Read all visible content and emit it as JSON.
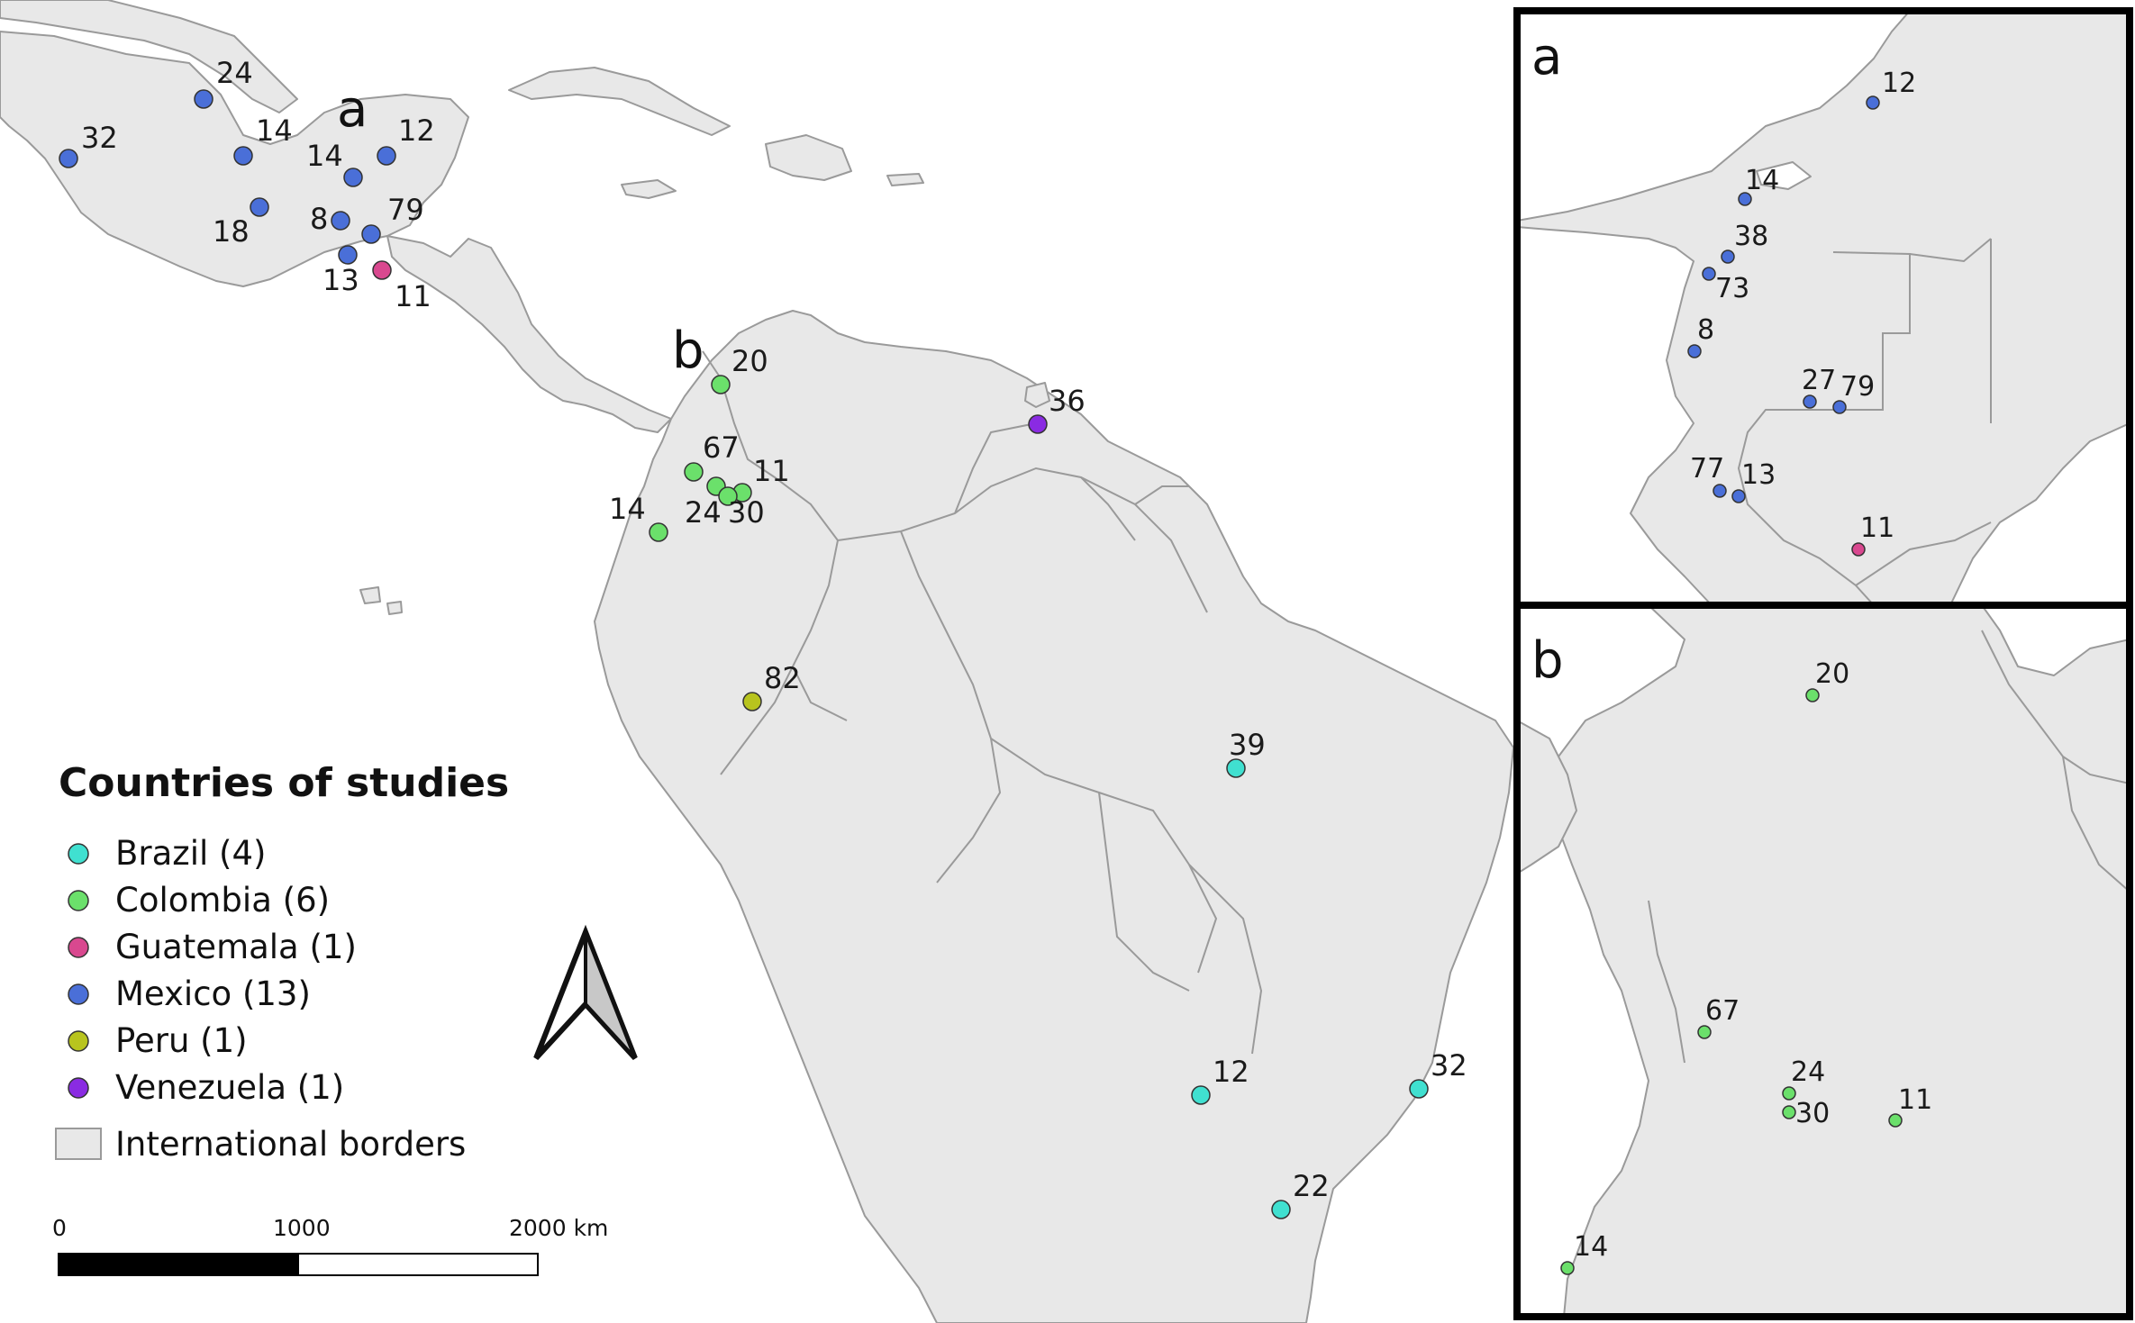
{
  "colors": {
    "brazil": "#40e0d0",
    "colombia": "#6be06b",
    "guatemala": "#d9488f",
    "mexico": "#4a6fd8",
    "peru": "#b8c41e",
    "venezuela": "#8a2be2",
    "land": "#e8e8e8",
    "border": "#9a9a9a"
  },
  "legend": {
    "title": "Countries of studies",
    "items": [
      {
        "label": "Brazil (4)",
        "color_key": "brazil"
      },
      {
        "label": "Colombia (6)",
        "color_key": "colombia"
      },
      {
        "label": "Guatemala (1)",
        "color_key": "guatemala"
      },
      {
        "label": "Mexico (13)",
        "color_key": "mexico"
      },
      {
        "label": "Peru (1)",
        "color_key": "peru"
      },
      {
        "label": "Venezuela (1)",
        "color_key": "venezuela"
      }
    ],
    "borders_label": "International borders"
  },
  "scale_bar": {
    "labels": [
      "0",
      "1000",
      "2000 km"
    ]
  },
  "main_map": {
    "inset_markers": [
      "a",
      "b"
    ],
    "points": [
      {
        "label": "24",
        "country": "mexico"
      },
      {
        "label": "32",
        "country": "mexico"
      },
      {
        "label": "14",
        "country": "mexico"
      },
      {
        "label": "14",
        "country": "mexico"
      },
      {
        "label": "12",
        "country": "mexico"
      },
      {
        "label": "18",
        "country": "mexico"
      },
      {
        "label": "8",
        "country": "mexico"
      },
      {
        "label": "79",
        "country": "mexico"
      },
      {
        "label": "13",
        "country": "mexico"
      },
      {
        "label": "11",
        "country": "guatemala"
      },
      {
        "label": "20",
        "country": "colombia"
      },
      {
        "label": "67",
        "country": "colombia"
      },
      {
        "label": "11",
        "country": "colombia"
      },
      {
        "label": "24",
        "country": "colombia"
      },
      {
        "label": "30",
        "country": "colombia"
      },
      {
        "label": "14",
        "country": "colombia"
      },
      {
        "label": "36",
        "country": "venezuela"
      },
      {
        "label": "82",
        "country": "peru"
      },
      {
        "label": "39",
        "country": "brazil"
      },
      {
        "label": "12",
        "country": "brazil"
      },
      {
        "label": "32",
        "country": "brazil"
      },
      {
        "label": "22",
        "country": "brazil"
      }
    ]
  },
  "inset_a": {
    "title": "a",
    "points": [
      {
        "label": "12",
        "country": "mexico"
      },
      {
        "label": "14",
        "country": "mexico"
      },
      {
        "label": "38",
        "country": "mexico"
      },
      {
        "label": "73",
        "country": "mexico"
      },
      {
        "label": "8",
        "country": "mexico"
      },
      {
        "label": "27",
        "country": "mexico"
      },
      {
        "label": "79",
        "country": "mexico"
      },
      {
        "label": "77",
        "country": "mexico"
      },
      {
        "label": "13",
        "country": "mexico"
      },
      {
        "label": "11",
        "country": "guatemala"
      }
    ]
  },
  "inset_b": {
    "title": "b",
    "points": [
      {
        "label": "20",
        "country": "colombia"
      },
      {
        "label": "67",
        "country": "colombia"
      },
      {
        "label": "24",
        "country": "colombia"
      },
      {
        "label": "30",
        "country": "colombia"
      },
      {
        "label": "11",
        "country": "colombia"
      },
      {
        "label": "14",
        "country": "colombia"
      }
    ]
  }
}
